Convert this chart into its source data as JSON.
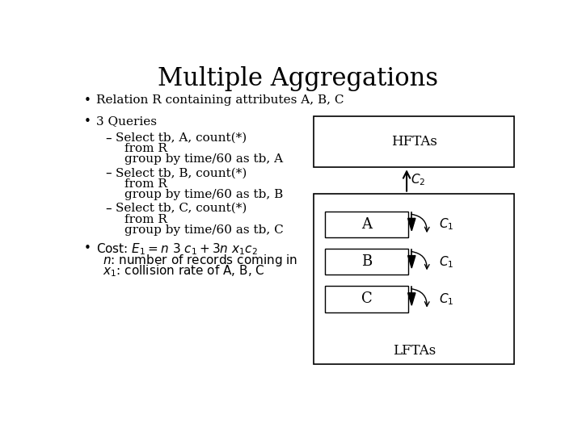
{
  "title": "Multiple Aggregations",
  "bullet1": "Relation R containing attributes A, B, C",
  "bullet2_header": "3 Queries",
  "query1_line1": "Select tb, A, count(*)",
  "query1_line2": "from R",
  "query1_line3": "group by time/60 as tb, A",
  "query2_line1": "Select tb, B, count(*)",
  "query2_line2": "from R",
  "query2_line3": "group by time/60 as tb, B",
  "query3_line1": "Select tb, C, count(*)",
  "query3_line2": "from R",
  "query3_line3": "group by time/60 as tb, C",
  "background_color": "#ffffff",
  "text_color": "#000000",
  "box_color": "#000000",
  "hftas_label": "HFTAs",
  "lftas_label": "LFTAs",
  "box_labels": [
    "A",
    "B",
    "C"
  ],
  "title_fontsize": 22,
  "body_fontsize": 11,
  "small_fontsize": 10
}
